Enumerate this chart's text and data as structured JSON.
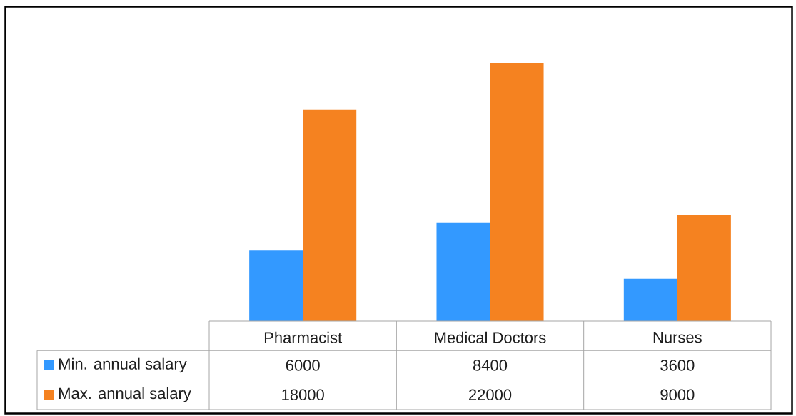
{
  "chart_data": {
    "type": "bar",
    "categories": [
      "Pharmacist",
      "Medical Doctors",
      "Nurses"
    ],
    "series": [
      {
        "name": "Min. annual salary",
        "color": "#3399ff",
        "values": [
          6000,
          8400,
          3600
        ]
      },
      {
        "name": "Max. annual salary",
        "color": "#f58220",
        "values": [
          18000,
          22000,
          9000
        ]
      }
    ],
    "data_labels": true,
    "legend": "bottom"
  }
}
